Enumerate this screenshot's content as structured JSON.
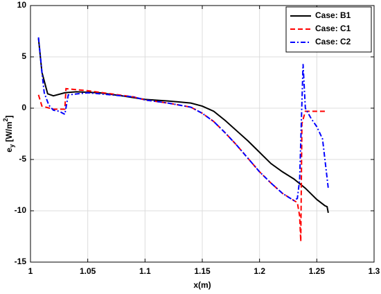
{
  "chart_data": {
    "type": "line",
    "xlabel": "x(m)",
    "ylabel": [
      "e",
      "y",
      " [W/m",
      "2",
      "]"
    ],
    "xlim": [
      1,
      1.3
    ],
    "xticks": [
      1,
      1.05,
      1.1,
      1.15,
      1.2,
      1.25,
      1.3
    ],
    "ylim": [
      -15,
      10
    ],
    "yticks": [
      -15,
      -10,
      -5,
      0,
      5,
      10
    ],
    "grid": true,
    "legend": "northeast",
    "series": [
      {
        "name": "Case: B1",
        "color": "#000000",
        "style": "solid",
        "x": [
          1.007,
          1.01,
          1.015,
          1.02,
          1.03,
          1.04,
          1.06,
          1.08,
          1.1,
          1.12,
          1.14,
          1.15,
          1.16,
          1.17,
          1.18,
          1.19,
          1.2,
          1.21,
          1.22,
          1.23,
          1.24,
          1.25,
          1.257,
          1.259,
          1.26
        ],
        "values": [
          6.8,
          3.5,
          1.4,
          1.2,
          1.5,
          1.6,
          1.5,
          1.2,
          0.85,
          0.7,
          0.5,
          0.2,
          -0.3,
          -1.2,
          -2.2,
          -3.2,
          -4.3,
          -5.4,
          -6.2,
          -6.9,
          -7.8,
          -8.9,
          -9.5,
          -9.6,
          -10.2
        ]
      },
      {
        "name": "Case: C1",
        "color": "#ff0000",
        "style": "dashed",
        "x": [
          1.007,
          1.01,
          1.02,
          1.03,
          1.031,
          1.05,
          1.07,
          1.09,
          1.1,
          1.12,
          1.14,
          1.15,
          1.16,
          1.17,
          1.18,
          1.19,
          1.2,
          1.21,
          1.22,
          1.23,
          1.233,
          1.235,
          1.236,
          1.237,
          1.24,
          1.258
        ],
        "values": [
          1.3,
          0.2,
          -0.1,
          -0.1,
          1.9,
          1.7,
          1.4,
          1.1,
          0.8,
          0.5,
          0.1,
          -0.5,
          -1.3,
          -2.4,
          -3.6,
          -4.9,
          -6.2,
          -7.3,
          -8.3,
          -9.0,
          -9.2,
          -10.5,
          -13,
          -1.5,
          -0.3,
          -0.3
        ]
      },
      {
        "name": "Case: C2",
        "color": "#0000ff",
        "style": "dashdot",
        "x": [
          1.007,
          1.01,
          1.012,
          1.016,
          1.02,
          1.025,
          1.03,
          1.033,
          1.05,
          1.07,
          1.09,
          1.1,
          1.12,
          1.14,
          1.15,
          1.16,
          1.17,
          1.18,
          1.19,
          1.2,
          1.21,
          1.22,
          1.23,
          1.233,
          1.235,
          1.238,
          1.24,
          1.245,
          1.25,
          1.255,
          1.26
        ],
        "values": [
          6.9,
          3.5,
          1.5,
          0.3,
          -0.2,
          -0.3,
          -0.6,
          1.3,
          1.5,
          1.3,
          1.1,
          0.8,
          0.5,
          0.1,
          -0.5,
          -1.3,
          -2.4,
          -3.6,
          -4.9,
          -6.2,
          -7.3,
          -8.3,
          -9.0,
          -8.8,
          -7,
          4.3,
          0,
          -1,
          -1.8,
          -3,
          -7.8
        ]
      }
    ]
  }
}
